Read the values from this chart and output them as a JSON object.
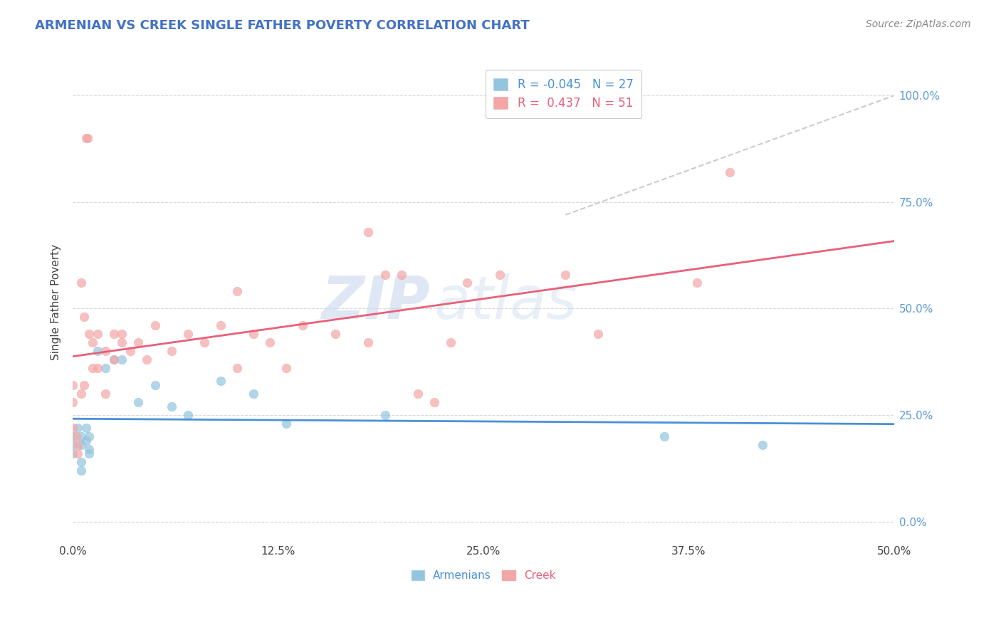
{
  "title": "ARMENIAN VS CREEK SINGLE FATHER POVERTY CORRELATION CHART",
  "source_text": "Source: ZipAtlas.com",
  "ylabel": "Single Father Poverty",
  "xlim": [
    0.0,
    0.5
  ],
  "ylim": [
    -0.05,
    1.08
  ],
  "xtick_labels": [
    "0.0%",
    "",
    "",
    "",
    "",
    "",
    "",
    "",
    "12.5%",
    "",
    "",
    "",
    "",
    "",
    "",
    "",
    "25.0%",
    "",
    "",
    "",
    "",
    "",
    "",
    "",
    "37.5%",
    "",
    "",
    "",
    "",
    "",
    "",
    "",
    "50.0%"
  ],
  "xtick_vals_minor": [
    0.0,
    0.015625,
    0.03125,
    0.046875,
    0.0625,
    0.078125,
    0.09375,
    0.109375,
    0.125,
    0.140625,
    0.15625,
    0.171875,
    0.1875,
    0.203125,
    0.21875,
    0.234375,
    0.25,
    0.265625,
    0.28125,
    0.296875,
    0.3125,
    0.328125,
    0.34375,
    0.359375,
    0.375,
    0.390625,
    0.40625,
    0.421875,
    0.4375,
    0.453125,
    0.46875,
    0.484375,
    0.5
  ],
  "xtick_major": [
    0.0,
    0.125,
    0.25,
    0.375,
    0.5
  ],
  "xtick_major_labels": [
    "0.0%",
    "12.5%",
    "25.0%",
    "37.5%",
    "50.0%"
  ],
  "ytick_vals": [
    0.0,
    0.25,
    0.5,
    0.75,
    1.0
  ],
  "ytick_labels": [
    "0.0%",
    "25.0%",
    "50.0%",
    "75.0%",
    "100.0%"
  ],
  "armenian_color": "#92c5de",
  "creek_color": "#f4a6a6",
  "armenian_line_color": "#4a90d9",
  "creek_line_color": "#e8607a",
  "armenian_R": -0.045,
  "armenian_N": 27,
  "creek_R": 0.437,
  "creek_N": 51,
  "watermark_zip": "ZIP",
  "watermark_atlas": "atlas",
  "armenian_points": [
    [
      0.0,
      0.2
    ],
    [
      0.0,
      0.18
    ],
    [
      0.0,
      0.16
    ],
    [
      0.003,
      0.22
    ],
    [
      0.005,
      0.2
    ],
    [
      0.005,
      0.18
    ],
    [
      0.005,
      0.14
    ],
    [
      0.005,
      0.12
    ],
    [
      0.008,
      0.22
    ],
    [
      0.008,
      0.19
    ],
    [
      0.01,
      0.2
    ],
    [
      0.01,
      0.17
    ],
    [
      0.01,
      0.16
    ],
    [
      0.015,
      0.4
    ],
    [
      0.02,
      0.36
    ],
    [
      0.025,
      0.38
    ],
    [
      0.03,
      0.38
    ],
    [
      0.04,
      0.28
    ],
    [
      0.05,
      0.32
    ],
    [
      0.06,
      0.27
    ],
    [
      0.07,
      0.25
    ],
    [
      0.09,
      0.33
    ],
    [
      0.11,
      0.3
    ],
    [
      0.13,
      0.23
    ],
    [
      0.19,
      0.25
    ],
    [
      0.36,
      0.2
    ],
    [
      0.42,
      0.18
    ]
  ],
  "creek_points": [
    [
      0.0,
      0.28
    ],
    [
      0.0,
      0.32
    ],
    [
      0.0,
      0.22
    ],
    [
      0.002,
      0.2
    ],
    [
      0.003,
      0.18
    ],
    [
      0.003,
      0.16
    ],
    [
      0.005,
      0.3
    ],
    [
      0.005,
      0.56
    ],
    [
      0.007,
      0.48
    ],
    [
      0.007,
      0.32
    ],
    [
      0.008,
      0.9
    ],
    [
      0.009,
      0.9
    ],
    [
      0.01,
      0.44
    ],
    [
      0.012,
      0.36
    ],
    [
      0.012,
      0.42
    ],
    [
      0.015,
      0.44
    ],
    [
      0.015,
      0.36
    ],
    [
      0.02,
      0.4
    ],
    [
      0.02,
      0.3
    ],
    [
      0.025,
      0.44
    ],
    [
      0.025,
      0.38
    ],
    [
      0.03,
      0.42
    ],
    [
      0.03,
      0.44
    ],
    [
      0.035,
      0.4
    ],
    [
      0.04,
      0.42
    ],
    [
      0.045,
      0.38
    ],
    [
      0.05,
      0.46
    ],
    [
      0.06,
      0.4
    ],
    [
      0.07,
      0.44
    ],
    [
      0.08,
      0.42
    ],
    [
      0.09,
      0.46
    ],
    [
      0.1,
      0.54
    ],
    [
      0.1,
      0.36
    ],
    [
      0.11,
      0.44
    ],
    [
      0.12,
      0.42
    ],
    [
      0.13,
      0.36
    ],
    [
      0.14,
      0.46
    ],
    [
      0.16,
      0.44
    ],
    [
      0.18,
      0.42
    ],
    [
      0.19,
      0.58
    ],
    [
      0.2,
      0.58
    ],
    [
      0.21,
      0.3
    ],
    [
      0.22,
      0.28
    ],
    [
      0.23,
      0.42
    ],
    [
      0.24,
      0.56
    ],
    [
      0.26,
      0.58
    ],
    [
      0.3,
      0.58
    ],
    [
      0.32,
      0.44
    ],
    [
      0.38,
      0.56
    ],
    [
      0.4,
      0.82
    ],
    [
      0.18,
      0.68
    ]
  ]
}
